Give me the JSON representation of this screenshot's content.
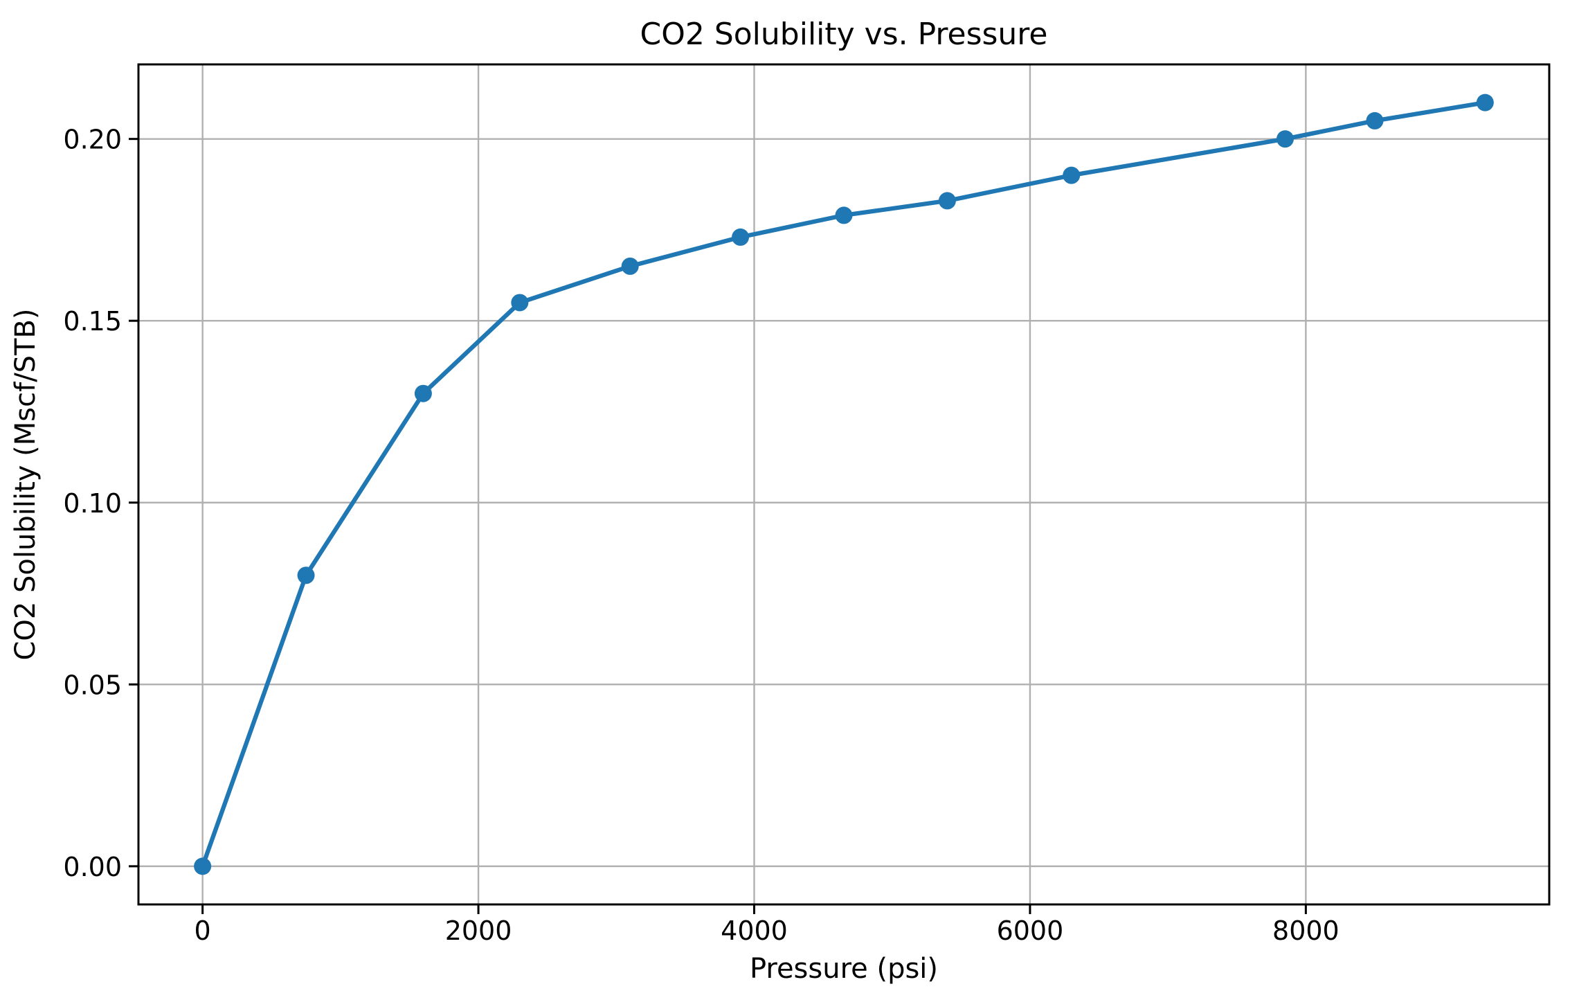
{
  "figure": {
    "background_color": "#ffffff"
  },
  "chart_data": {
    "type": "line",
    "title": "CO2 Solubility vs. Pressure",
    "xlabel": "Pressure (psi)",
    "ylabel": "CO2 Solubility (Mscf/STB)",
    "x": [
      0,
      750,
      1600,
      2300,
      3100,
      3900,
      4650,
      5400,
      6300,
      7850,
      8500,
      9300
    ],
    "y": [
      0.0,
      0.08,
      0.13,
      0.155,
      0.165,
      0.173,
      0.179,
      0.183,
      0.19,
      0.2,
      0.205,
      0.21
    ],
    "xlim": [
      -465,
      9765
    ],
    "ylim": [
      -0.0105,
      0.2205
    ],
    "xticks": {
      "values": [
        0,
        2000,
        4000,
        6000,
        8000
      ],
      "labels": [
        "0",
        "2000",
        "4000",
        "6000",
        "8000"
      ]
    },
    "yticks": {
      "values": [
        0.0,
        0.05,
        0.1,
        0.15,
        0.2
      ],
      "labels": [
        "0.00",
        "0.05",
        "0.10",
        "0.15",
        "0.20"
      ]
    },
    "grid": true,
    "legend_position": "none",
    "line_color": "#1f77b4",
    "marker": "circle",
    "marker_color": "#1f77b4",
    "grid_color": "#b0b0b0",
    "spine_color": "#000000"
  }
}
